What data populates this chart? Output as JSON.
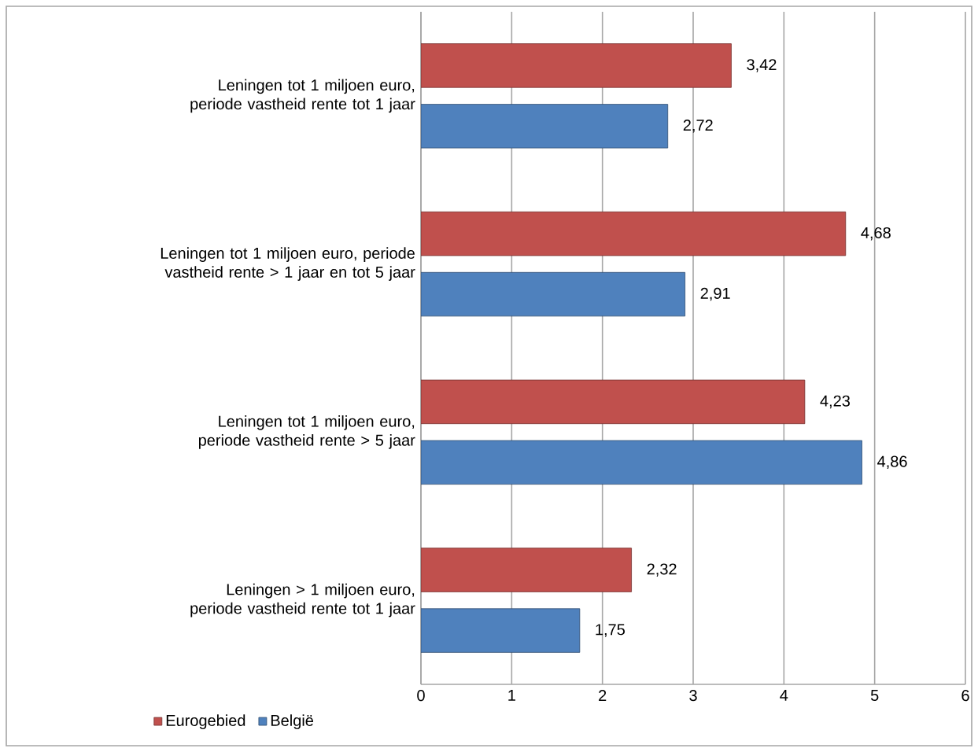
{
  "chart_data": {
    "type": "bar",
    "orientation": "horizontal",
    "categories": [
      "Leningen tot 1 miljoen euro, periode vastheid rente tot 1 jaar",
      "Leningen tot 1 miljoen euro, periode vastheid rente > 1 jaar en tot 5 jaar",
      "Leningen tot 1 miljoen euro, periode vastheid rente > 5 jaar",
      "Leningen > 1 miljoen euro, periode vastheid rente tot 1 jaar"
    ],
    "series": [
      {
        "name": "Eurogebied",
        "color": "#c0504d",
        "values": [
          3.42,
          4.68,
          4.23,
          2.32
        ],
        "value_labels": [
          "3,42",
          "4,68",
          "4,23",
          "2,32"
        ]
      },
      {
        "name": "België",
        "color": "#4f81bd",
        "values": [
          2.72,
          2.91,
          4.86,
          1.75
        ],
        "value_labels": [
          "2,72",
          "2,91",
          "4,86",
          "1,75"
        ]
      }
    ],
    "xlim": [
      0,
      6
    ],
    "xticks": [
      0,
      1,
      2,
      3,
      4,
      5,
      6
    ],
    "grid": "x",
    "legend": "bottom left"
  }
}
